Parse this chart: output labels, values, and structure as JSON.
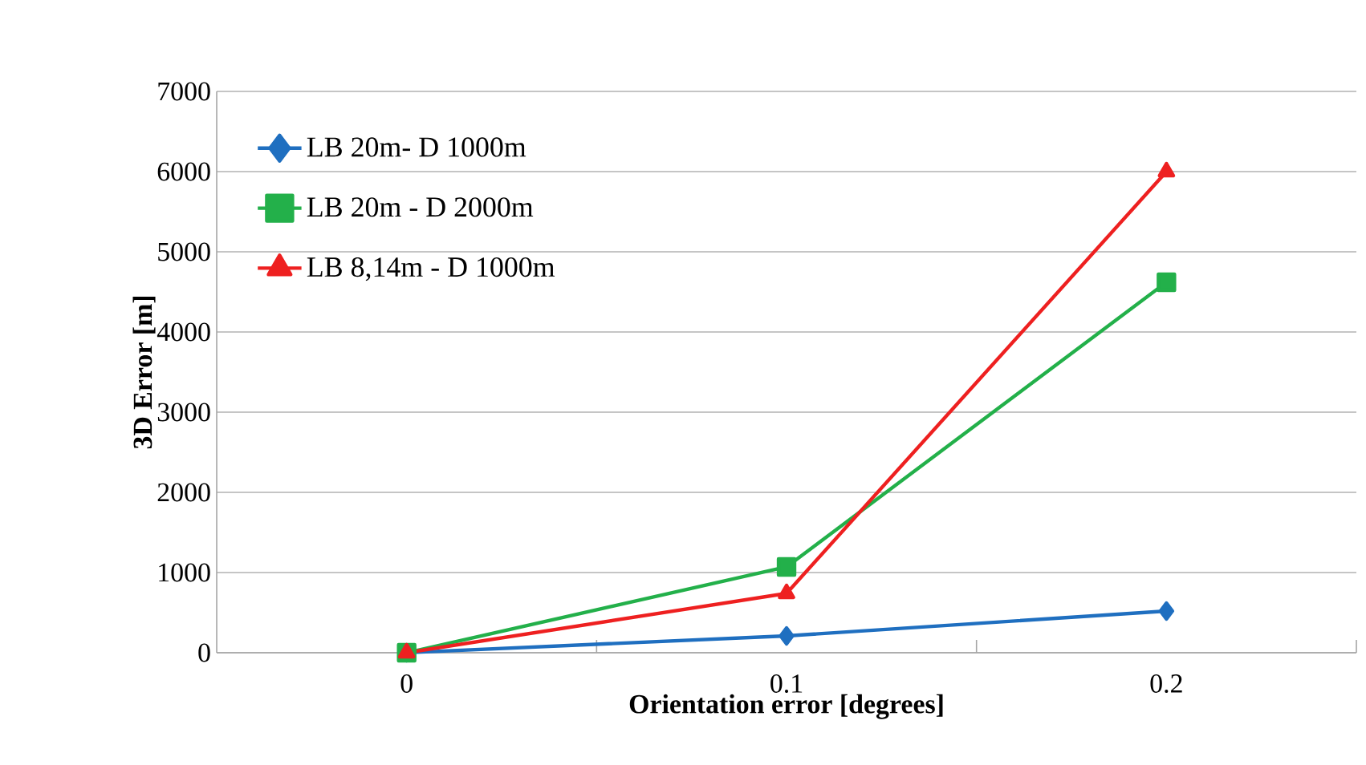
{
  "chart_data": {
    "type": "line",
    "xlabel": "Orientation error [degrees]",
    "ylabel": "3D Error [m]",
    "categories": [
      "0",
      "0.1",
      "0.2"
    ],
    "series": [
      {
        "name": "LB 20m- D 1000m",
        "color": "#1f6fc0",
        "marker": "diamond",
        "values": [
          0,
          210,
          520
        ]
      },
      {
        "name": "LB 20m - D 2000m",
        "color": "#23b04a",
        "marker": "square",
        "values": [
          0,
          1070,
          4620
        ]
      },
      {
        "name": "LB 8,14m - D 1000m",
        "color": "#ee2020",
        "marker": "triangle",
        "values": [
          0,
          740,
          6000
        ]
      }
    ],
    "ylim": [
      0,
      7000
    ],
    "yticks": [
      0,
      1000,
      2000,
      3000,
      4000,
      5000,
      6000,
      7000
    ],
    "grid": "y",
    "legend": "top left",
    "line_style": "solid"
  }
}
